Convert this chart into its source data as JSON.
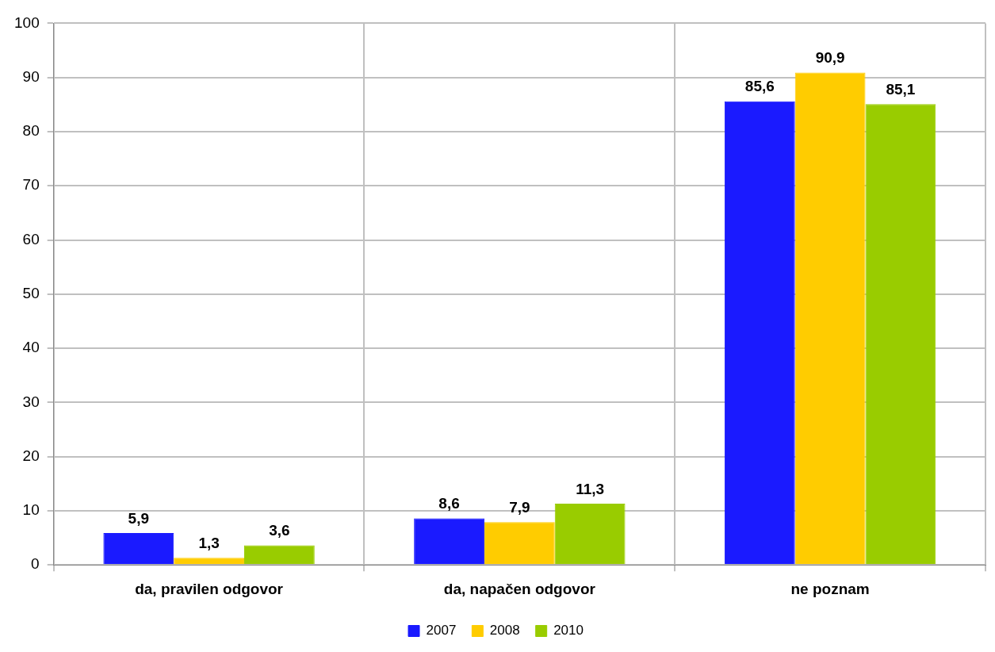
{
  "chart_data": {
    "type": "bar",
    "categories": [
      "da, pravilen odgovor",
      "da, napačen odgovor",
      "ne poznam"
    ],
    "series": [
      {
        "name": "2007",
        "color": "#1a1aff",
        "values": [
          5.9,
          8.6,
          85.6
        ],
        "value_labels": [
          "5,9",
          "8,6",
          "85,6"
        ]
      },
      {
        "name": "2008",
        "color": "#ffcc00",
        "values": [
          1.3,
          7.9,
          90.9
        ],
        "value_labels": [
          "1,3",
          "7,9",
          "90,9"
        ]
      },
      {
        "name": "2010",
        "color": "#99cc00",
        "values": [
          3.6,
          11.3,
          85.1
        ],
        "value_labels": [
          "3,6",
          "11,3",
          "85,1"
        ]
      }
    ],
    "ylim": [
      0,
      100
    ],
    "yticks": [
      0,
      10,
      20,
      30,
      40,
      50,
      60,
      70,
      80,
      90,
      100
    ],
    "grid": true,
    "legend": "bottom"
  }
}
